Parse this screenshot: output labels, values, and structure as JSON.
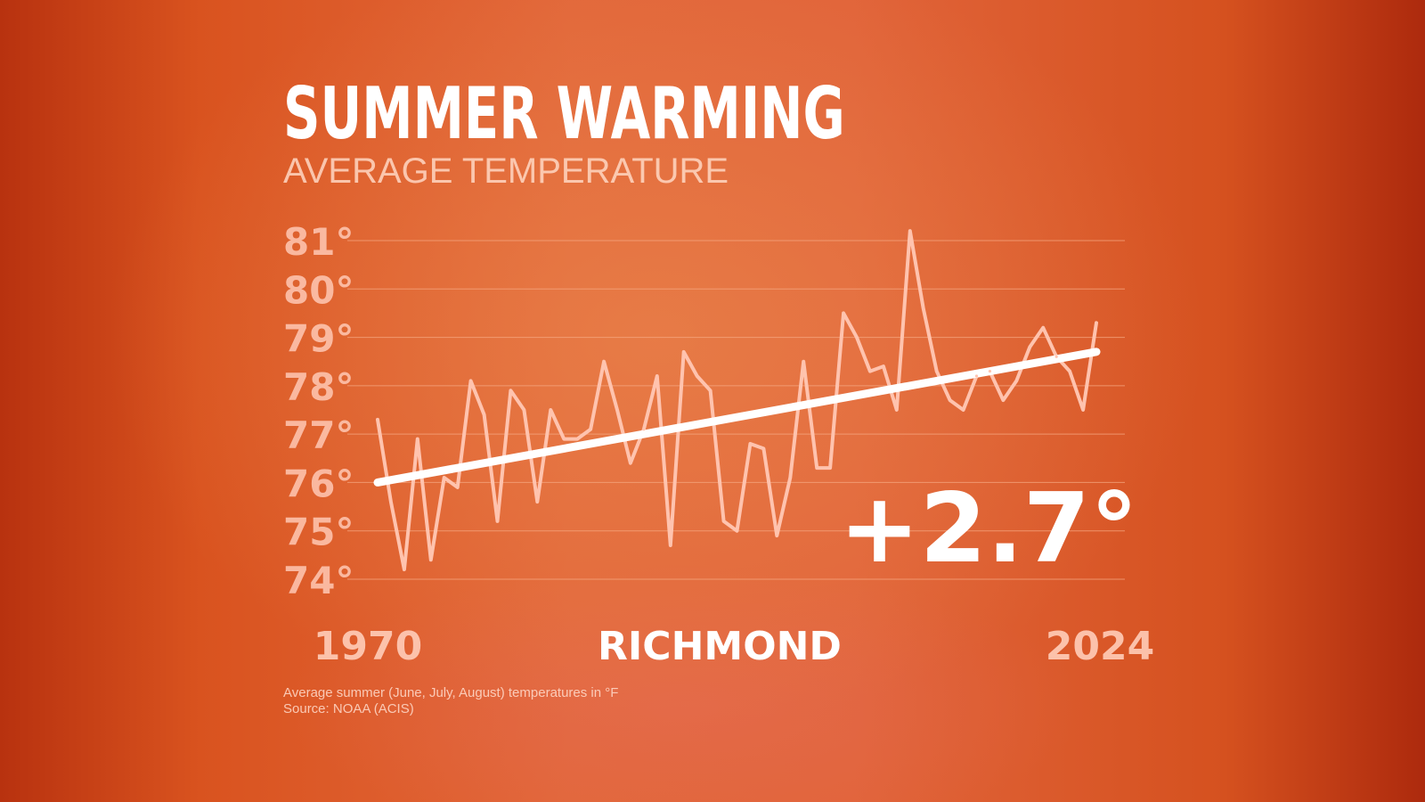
{
  "header": {
    "title": "SUMMER WARMING",
    "subtitle": "AVERAGE TEMPERATURE"
  },
  "footer": {
    "note": "Average summer (June, July, August) temperatures in °F",
    "source": "Source: NOAA (ACIS)"
  },
  "colors": {
    "data_line": "#ffc3ae",
    "trend_line": "#ffffff",
    "gridline": "#f6a882"
  },
  "chart_data": {
    "type": "line",
    "title": "SUMMER WARMING",
    "subtitle": "AVERAGE TEMPERATURE",
    "location_label": "RICHMOND",
    "change_label": "+2.7°",
    "x_tick_labels": [
      "1970",
      "2024"
    ],
    "y_tick_labels": [
      "74°",
      "75°",
      "76°",
      "77°",
      "78°",
      "79°",
      "80°",
      "81°"
    ],
    "y_ticks": [
      74,
      75,
      76,
      77,
      78,
      79,
      80,
      81
    ],
    "xlim": [
      1970,
      2024
    ],
    "ylim": [
      74,
      81
    ],
    "grid": true,
    "series": [
      {
        "x": [
          1970,
          1971,
          1972,
          1973,
          1974,
          1975,
          1976,
          1977,
          1978,
          1979,
          1980,
          1981,
          1982,
          1983,
          1984,
          1985,
          1986,
          1987,
          1988,
          1989,
          1990,
          1991,
          1992,
          1993,
          1994,
          1995,
          1996,
          1997,
          1998,
          1999,
          2000,
          2001,
          2002,
          2003,
          2004,
          2005,
          2006,
          2007,
          2008,
          2009,
          2010,
          2011,
          2012,
          2013,
          2014,
          2015,
          2016,
          2017,
          2018,
          2019,
          2020,
          2021,
          2022,
          2023,
          2024
        ],
        "values": [
          77.3,
          75.6,
          74.2,
          76.9,
          74.4,
          76.1,
          75.9,
          78.1,
          77.4,
          75.2,
          77.9,
          77.5,
          75.6,
          77.5,
          76.9,
          76.9,
          77.1,
          78.5,
          77.5,
          76.4,
          77.1,
          78.2,
          74.7,
          78.7,
          78.2,
          77.9,
          75.2,
          75.0,
          76.8,
          76.7,
          74.9,
          76.1,
          78.5,
          76.3,
          76.3,
          79.5,
          79.0,
          78.3,
          78.4,
          77.5,
          81.2,
          79.6,
          78.3,
          77.7,
          77.5,
          78.2,
          78.3,
          77.7,
          78.1,
          78.8,
          79.2,
          78.6,
          78.3,
          77.5,
          79.3
        ]
      },
      {
        "x": [
          1970,
          2024
        ],
        "values": [
          76.0,
          78.7
        ]
      }
    ]
  }
}
